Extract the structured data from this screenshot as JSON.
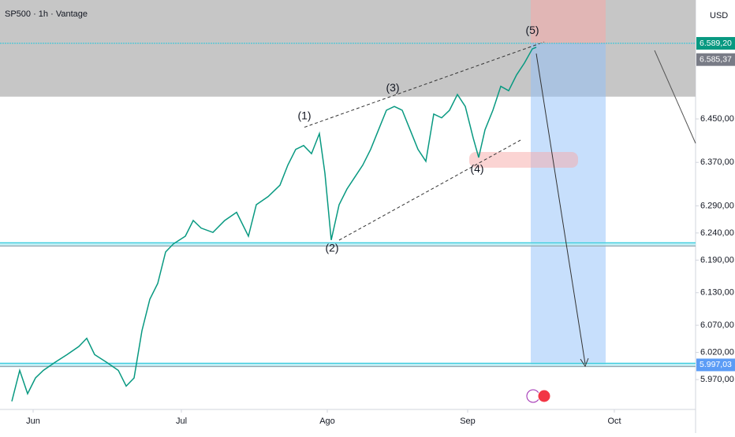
{
  "chart_data": {
    "type": "line",
    "title": "SP500 · 1h · Vantage",
    "currency": "USD",
    "xlim": [
      0,
      882
    ],
    "ylim": [
      5915,
      6669
    ],
    "xticks": [
      {
        "value": 42,
        "label": "Jun"
      },
      {
        "value": 230,
        "label": "Jul"
      },
      {
        "value": 415,
        "label": "Ago"
      },
      {
        "value": 593,
        "label": "Sep"
      },
      {
        "value": 779,
        "label": "Oct"
      }
    ],
    "yticks": [
      {
        "value": 6450,
        "label": "6.450,00"
      },
      {
        "value": 6370,
        "label": "6.370,00"
      },
      {
        "value": 6290,
        "label": "6.290,00"
      },
      {
        "value": 6240,
        "label": "6.240,00"
      },
      {
        "value": 6190,
        "label": "6.190,00"
      },
      {
        "value": 6130,
        "label": "6.130,00"
      },
      {
        "value": 6070,
        "label": "6.070,00"
      },
      {
        "value": 6020,
        "label": "6.020,00"
      },
      {
        "value": 5970,
        "label": "5.970,00"
      }
    ],
    "series": [
      {
        "name": "SP500",
        "color": "#089981",
        "x": [
          15,
          25,
          35,
          45,
          55,
          70,
          85,
          100,
          110,
          120,
          135,
          150,
          160,
          170,
          180,
          190,
          200,
          210,
          220,
          235,
          245,
          255,
          270,
          285,
          300,
          315,
          325,
          340,
          355,
          365,
          375,
          385,
          395,
          405,
          412,
          420,
          430,
          440,
          450,
          460,
          470,
          480,
          490,
          500,
          510,
          520,
          530,
          540,
          550,
          560,
          570,
          580,
          590,
          600,
          607,
          615,
          625,
          635,
          645,
          655,
          665,
          675,
          680
        ],
        "values": [
          5930,
          5987,
          5944,
          5973,
          5987,
          6002,
          6016,
          6031,
          6046,
          6016,
          6002,
          5987,
          5958,
          5973,
          6060,
          6118,
          6147,
          6205,
          6220,
          6234,
          6263,
          6249,
          6241,
          6263,
          6278,
          6234,
          6292,
          6307,
          6328,
          6365,
          6394,
          6401,
          6386,
          6423,
          6350,
          6227,
          6292,
          6321,
          6343,
          6365,
          6394,
          6430,
          6466,
          6473,
          6466,
          6430,
          6394,
          6372,
          6459,
          6452,
          6466,
          6495,
          6473,
          6415,
          6379,
          6430,
          6466,
          6510,
          6502,
          6531,
          6553,
          6579,
          6582
        ]
      }
    ],
    "price_labels": [
      {
        "value": 6589.2,
        "label": "6.589,20",
        "color": "#089981"
      },
      {
        "value": 6585.37,
        "label": "6.585,37",
        "color": "#787b86"
      },
      {
        "value": 5997.03,
        "label": "5.997,03",
        "color": "#5b9cf6"
      }
    ],
    "zone": {
      "from": 6491,
      "to": 6669,
      "color": "#c3c3c3"
    },
    "support": [
      6219,
      5997.03
    ],
    "position": {
      "x": [
        673,
        768
      ],
      "stop": 6669,
      "entry": 6589.2,
      "target": 5997.03
    },
    "waves": [
      {
        "text": "(1)",
        "x": 386,
        "y": 6455
      },
      {
        "text": "(2)",
        "x": 421,
        "y": 6211
      },
      {
        "text": "(3)",
        "x": 498,
        "y": 6506
      },
      {
        "text": "(4)",
        "x": 605,
        "y": 6357
      },
      {
        "text": "(5)",
        "x": 675,
        "y": 6612
      }
    ]
  }
}
